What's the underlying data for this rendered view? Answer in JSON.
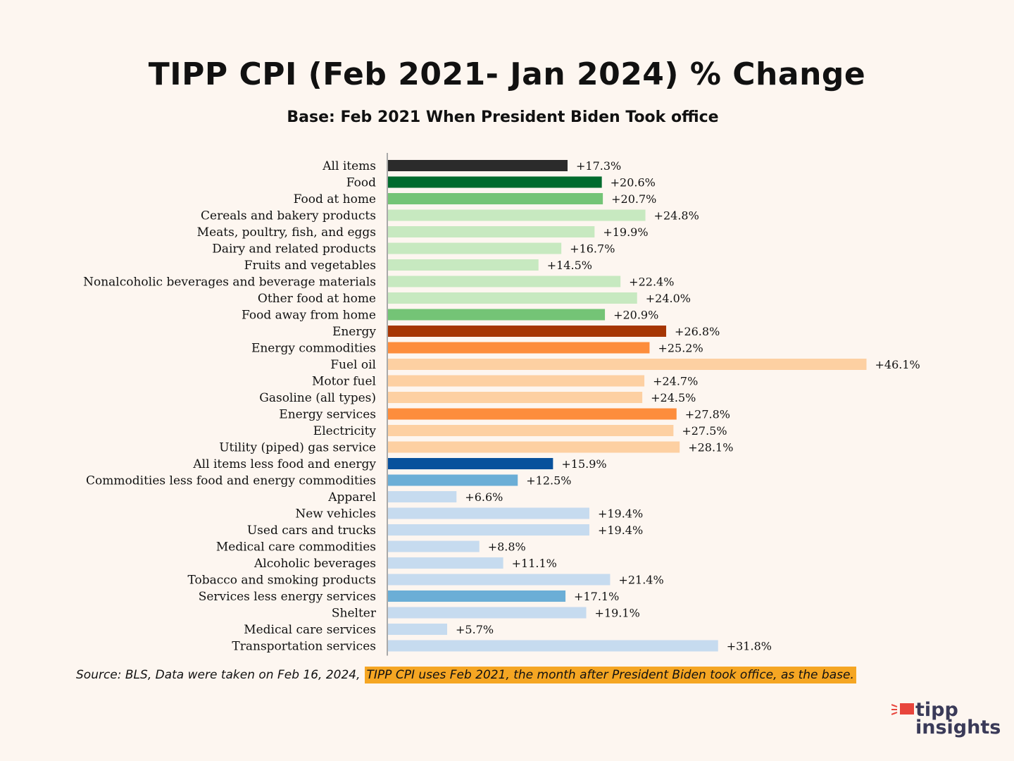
{
  "chart_data": {
    "type": "bar",
    "orientation": "horizontal",
    "title": "TIPP CPI (Feb 2021- Jan 2024) % Change",
    "subtitle": "Base: Feb 2021 When President Biden Took office",
    "xlim": [
      0,
      50
    ],
    "grid": false,
    "legend": "none",
    "categories": [
      "All items",
      "Food",
      "Food at home",
      "Cereals and bakery products",
      "Meats, poultry, fish, and eggs",
      "Dairy and related products",
      "Fruits and vegetables",
      "Nonalcoholic beverages and beverage materials",
      "Other food at home",
      "Food away from home",
      "Energy",
      "Energy commodities",
      "Fuel oil",
      "Motor fuel",
      "Gasoline (all types)",
      "Energy services",
      "Electricity",
      "Utility (piped) gas service",
      "All items less food and energy",
      "Commodities less food and energy commodities",
      "Apparel",
      "New vehicles",
      "Used cars and trucks",
      "Medical care commodities",
      "Alcoholic beverages",
      "Tobacco and smoking products",
      "Services less energy services",
      "Shelter",
      "Medical care services",
      "Transportation services"
    ],
    "values": [
      17.3,
      20.6,
      20.7,
      24.8,
      19.9,
      16.7,
      14.5,
      22.4,
      24.0,
      20.9,
      26.8,
      25.2,
      46.1,
      24.7,
      24.5,
      27.8,
      27.5,
      28.1,
      15.9,
      12.5,
      6.6,
      19.4,
      19.4,
      8.8,
      11.1,
      21.4,
      17.1,
      19.1,
      5.7,
      31.8
    ],
    "data_labels": [
      "+17.3%",
      "+20.6%",
      "+20.7%",
      "+24.8%",
      "+19.9%",
      "+16.7%",
      "+14.5%",
      "+22.4%",
      "+24.0%",
      "+20.9%",
      "+26.8%",
      "+25.2%",
      "+46.1%",
      "+24.7%",
      "+24.5%",
      "+27.8%",
      "+27.5%",
      "+28.1%",
      "+15.9%",
      "+12.5%",
      "+6.6%",
      "+19.4%",
      "+19.4%",
      "+8.8%",
      "+11.1%",
      "+21.4%",
      "+17.1%",
      "+19.1%",
      "+5.7%",
      "+31.8%"
    ],
    "colors": [
      "#2b2b2b",
      "#006b2d",
      "#74c476",
      "#c7e9c0",
      "#c7e9c0",
      "#c7e9c0",
      "#c7e9c0",
      "#c7e9c0",
      "#c7e9c0",
      "#74c476",
      "#a63603",
      "#fd8d3c",
      "#fdd0a2",
      "#fdd0a2",
      "#fdd0a2",
      "#fd8d3c",
      "#fdd0a2",
      "#fdd0a2",
      "#08519c",
      "#6baed6",
      "#c6dbef",
      "#c6dbef",
      "#c6dbef",
      "#c6dbef",
      "#c6dbef",
      "#c6dbef",
      "#6baed6",
      "#c6dbef",
      "#c6dbef",
      "#c6dbef"
    ]
  },
  "source": {
    "text": "Source:  BLS, Data were taken on Feb 16, 2024,",
    "highlight": "TIPP CPI uses Feb 2021, the month after President Biden took office, as the base.",
    "highlight_color": "#f5a623"
  },
  "logo": {
    "line1": "tipp",
    "line2": "insights",
    "accent_color": "#e8453c",
    "text_color": "#3a3a58"
  }
}
